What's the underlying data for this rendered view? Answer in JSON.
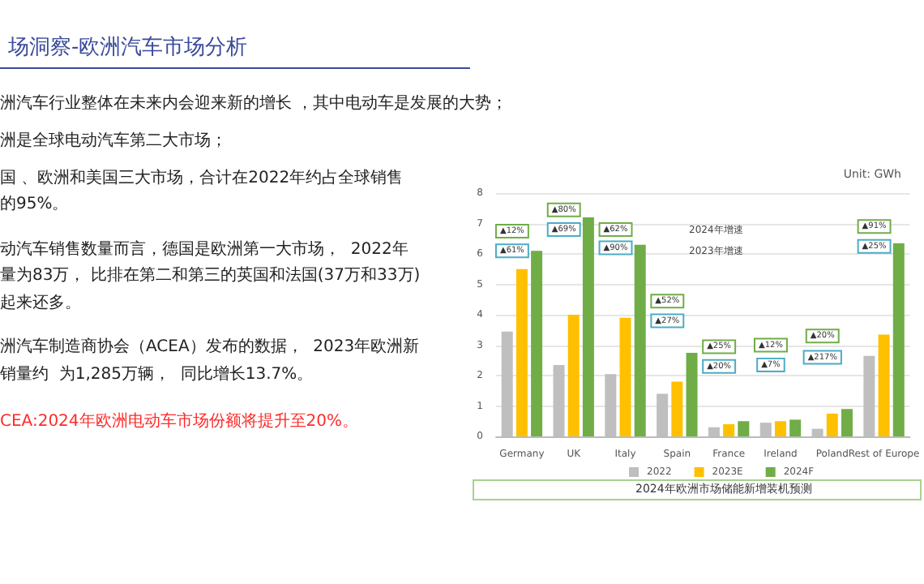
{
  "chart_data": {
    "type": "bar",
    "title": "场洞察-欧洲汽车市场分析",
    "ylabel": "Unit: GWh",
    "categories": [
      "Germany",
      "UK",
      "Italy",
      "Spain",
      "France",
      "Ireland",
      "Poland",
      "Rest of Europe"
    ],
    "series": [
      {
        "name": "2022",
        "color": "#bfbfbf",
        "values": [
          3.45,
          2.35,
          2.05,
          1.4,
          0.3,
          0.45,
          0.25,
          2.65
        ]
      },
      {
        "name": "2023E",
        "color": "#ffc000",
        "values": [
          5.5,
          4.0,
          3.9,
          1.8,
          0.4,
          0.5,
          0.75,
          3.35
        ]
      },
      {
        "name": "2024F",
        "color": "#70ad47",
        "values": [
          6.1,
          7.2,
          6.3,
          2.75,
          0.5,
          0.55,
          0.9,
          6.35
        ]
      }
    ],
    "ylim": [
      0,
      8
    ],
    "yticks": [
      0,
      1,
      2,
      3,
      4,
      5,
      6,
      7,
      8
    ],
    "grid": "y",
    "legend": "bottom",
    "annotations": [
      "洲汽车行业整体在未来内会迎来新的增长 ，其中电动车是发展的大势；",
      "洲是全球电动汽车第二大市场；",
      "国 、欧洲和美国三大市场，合计在2022年约占全球销售",
      "的95%。",
      "动汽车销售数量而言，德国是欧洲第一大市场，  2022年",
      "量为83万， 比排在第二和第三的英国和法国(37万和33万)",
      "起来还多。",
      "洲汽车制造商协会（ACEA）发布的数据，  2023年欧洲新",
      "销量约  为1,285万辆，  同比增长13.7%。",
      "CEA:2024年欧洲电动车市场份额将提升至20%。",
      "2024年欧洲市场储能新增装机预测",
      "2024年增速",
      "2023年增速",
      "▲12%",
      "▲61%",
      "▲80%",
      "▲69%",
      "▲62%",
      "▲90%",
      "▲52%",
      "▲27%",
      "▲25%",
      "▲20%",
      "▲12%",
      "▲7%",
      "▲20%",
      "▲217%",
      "▲91%",
      "▲25%"
    ]
  }
}
